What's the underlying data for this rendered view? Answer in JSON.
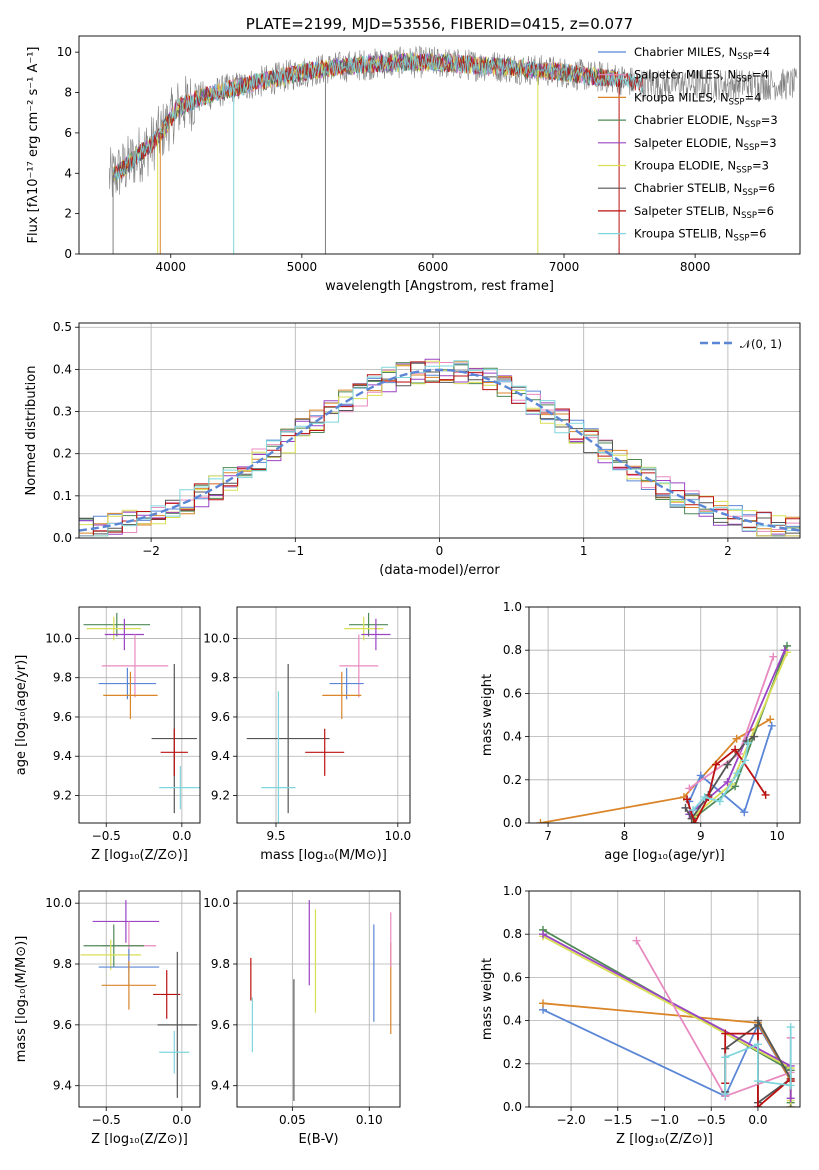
{
  "chart_data": [
    {
      "id": "spectrum",
      "type": "line",
      "title": "PLATE=2199, MJD=53556, FIBERID=0415, z=0.077",
      "xlabel": "wavelength [Angstrom, rest frame]",
      "ylabel": "Flux [fλ10⁻¹⁷ erg cm⁻² s⁻¹ A⁻¹]",
      "xlim": [
        3300,
        8800
      ],
      "ylim": [
        0,
        10.8
      ],
      "xticks": [
        "4000",
        "5000",
        "6000",
        "7000",
        "8000"
      ],
      "yticks": [
        "0",
        "2",
        "4",
        "6",
        "8",
        "10"
      ],
      "legend_position": "right",
      "series": [
        {
          "name": "Chabrier MILES, N",
          "sub": "SSP",
          "suffix": "=4",
          "color": "#5b86d6"
        },
        {
          "name": "Salpeter MILES, N",
          "sub": "SSP",
          "suffix": "=4",
          "color": "#e88ac0"
        },
        {
          "name": "Kroupa MILES, N",
          "sub": "SSP",
          "suffix": "=4",
          "color": "#d98528"
        },
        {
          "name": "Chabrier ELODIE, N",
          "sub": "SSP",
          "suffix": "=3",
          "color": "#4f8a55"
        },
        {
          "name": "Salpeter ELODIE, N",
          "sub": "SSP",
          "suffix": "=3",
          "color": "#9b44c4"
        },
        {
          "name": "Kroupa ELODIE, N",
          "sub": "SSP",
          "suffix": "=3",
          "color": "#d9df55"
        },
        {
          "name": "Chabrier STELIB, N",
          "sub": "SSP",
          "suffix": "=6",
          "color": "#555555"
        },
        {
          "name": "Salpeter STELIB, N",
          "sub": "SSP",
          "suffix": "=6",
          "color": "#bb1111"
        },
        {
          "name": "Kroupa STELIB, N",
          "sub": "SSP",
          "suffix": "=6",
          "color": "#7fd6dc"
        }
      ],
      "continuum_x": [
        3550,
        3650,
        3750,
        3850,
        3950,
        4050,
        4200,
        4400,
        4600,
        4800,
        5000,
        5200,
        5500,
        5800,
        6000,
        6200,
        6500,
        6800,
        7000,
        7200,
        7400,
        7600
      ],
      "continuum_y": [
        3.8,
        4.3,
        4.9,
        5.4,
        6.2,
        7.2,
        7.7,
        8.1,
        8.4,
        8.7,
        9.0,
        9.2,
        9.4,
        9.5,
        9.5,
        9.4,
        9.3,
        9.1,
        9.0,
        8.8,
        8.7,
        8.4
      ]
    },
    {
      "id": "residuals",
      "type": "histogram",
      "xlabel": "(data-model)/error",
      "ylabel": "Normed distribution",
      "xlim": [
        -2.5,
        2.5
      ],
      "ylim": [
        0,
        0.51
      ],
      "xticks": [
        "−2",
        "−1",
        "0",
        "1",
        "2"
      ],
      "yticks": [
        "0.0",
        "0.1",
        "0.2",
        "0.3",
        "0.4",
        "0.5"
      ],
      "legend": "𝒩(0, 1)",
      "legend_position": "top-right"
    },
    {
      "id": "age-vs-z",
      "type": "errorbar",
      "xlabel": "Z [log₁₀(Z/Z⊙)]",
      "ylabel": "age  [log₁₀(age/yr)]",
      "xlim": [
        -0.68,
        0.12
      ],
      "ylim": [
        9.06,
        10.16
      ],
      "xticks": [
        "−0.5",
        "0.0"
      ],
      "yticks": [
        "9.2",
        "9.4",
        "9.6",
        "9.8",
        "10.0"
      ],
      "points": [
        {
          "color": "#4f8a55",
          "x": -0.43,
          "y": 10.07,
          "xe": 0.22,
          "ye": 0.06
        },
        {
          "color": "#d9df55",
          "x": -0.45,
          "y": 10.05,
          "xe": 0.18,
          "ye": 0.06
        },
        {
          "color": "#9b44c4",
          "x": -0.38,
          "y": 10.02,
          "xe": 0.13,
          "ye": 0.08
        },
        {
          "color": "#e88ac0",
          "x": -0.31,
          "y": 9.86,
          "xe": 0.22,
          "ye": 0.16
        },
        {
          "color": "#5b86d6",
          "x": -0.36,
          "y": 9.77,
          "xe": 0.19,
          "ye": 0.08
        },
        {
          "color": "#d98528",
          "x": -0.34,
          "y": 9.71,
          "xe": 0.18,
          "ye": 0.12
        },
        {
          "color": "#555555",
          "x": -0.05,
          "y": 9.49,
          "xe": 0.15,
          "ye": 0.38
        },
        {
          "color": "#bb1111",
          "x": -0.05,
          "y": 9.42,
          "xe": 0.09,
          "ye": 0.12
        },
        {
          "color": "#7fd6dc",
          "x": -0.01,
          "y": 9.24,
          "xe": 0.14,
          "ye": 0.11
        }
      ]
    },
    {
      "id": "age-vs-mass",
      "type": "errorbar",
      "xlabel": "mass [log₁₀(M/M⊙)]",
      "xlim": [
        9.34,
        10.05
      ],
      "ylim": [
        9.06,
        10.16
      ],
      "xticks": [
        "9.5",
        "10.0"
      ],
      "yticks": [
        "9.2",
        "9.4",
        "9.6",
        "9.8",
        "10.0"
      ],
      "points": [
        {
          "color": "#4f8a55",
          "x": 9.88,
          "y": 10.07,
          "xe": 0.08,
          "ye": 0.06
        },
        {
          "color": "#d9df55",
          "x": 9.86,
          "y": 10.05,
          "xe": 0.08,
          "ye": 0.06
        },
        {
          "color": "#9b44c4",
          "x": 9.91,
          "y": 10.02,
          "xe": 0.06,
          "ye": 0.08
        },
        {
          "color": "#e88ac0",
          "x": 9.84,
          "y": 9.86,
          "xe": 0.08,
          "ye": 0.16
        },
        {
          "color": "#5b86d6",
          "x": 9.79,
          "y": 9.77,
          "xe": 0.07,
          "ye": 0.08
        },
        {
          "color": "#d98528",
          "x": 9.77,
          "y": 9.71,
          "xe": 0.08,
          "ye": 0.12
        },
        {
          "color": "#555555",
          "x": 9.55,
          "y": 9.49,
          "xe": 0.17,
          "ye": 0.38
        },
        {
          "color": "#bb1111",
          "x": 9.7,
          "y": 9.42,
          "xe": 0.08,
          "ye": 0.12
        },
        {
          "color": "#7fd6dc",
          "x": 9.51,
          "y": 9.24,
          "xe": 0.07,
          "ye": 0.49
        }
      ]
    },
    {
      "id": "mass-weight-vs-age",
      "type": "line",
      "xlabel": "age  [log₁₀(age/yr)]",
      "ylabel": "mass weight",
      "xlim": [
        6.75,
        10.3
      ],
      "ylim": [
        0,
        1.0
      ],
      "xticks": [
        "7",
        "8",
        "9",
        "10"
      ],
      "yticks": [
        "0.0",
        "0.2",
        "0.4",
        "0.6",
        "0.8",
        "1.0"
      ],
      "series": [
        {
          "color": "#d98528",
          "x": [
            6.9,
            8.78,
            9.47,
            9.91
          ],
          "y": [
            0.0,
            0.12,
            0.39,
            0.48
          ]
        },
        {
          "color": "#5b86d6",
          "x": [
            8.85,
            9.0,
            9.57,
            9.93
          ],
          "y": [
            0.1,
            0.22,
            0.05,
            0.45
          ]
        },
        {
          "color": "#4f8a55",
          "x": [
            8.9,
            9.45,
            10.13
          ],
          "y": [
            0.02,
            0.17,
            0.82
          ]
        },
        {
          "color": "#d9df55",
          "x": [
            8.9,
            9.4,
            10.13
          ],
          "y": [
            0.03,
            0.18,
            0.79
          ]
        },
        {
          "color": "#9b44c4",
          "x": [
            8.85,
            9.35,
            10.1
          ],
          "y": [
            0.04,
            0.19,
            0.8
          ]
        },
        {
          "color": "#e88ac0",
          "x": [
            8.85,
            9.5,
            9.95
          ],
          "y": [
            0.16,
            0.32,
            0.77
          ]
        },
        {
          "color": "#555555",
          "x": [
            8.8,
            8.88,
            9.1,
            9.35,
            9.6,
            9.7
          ],
          "y": [
            0.07,
            0.02,
            0.13,
            0.27,
            0.38,
            0.4
          ]
        },
        {
          "color": "#bb1111",
          "x": [
            8.82,
            8.92,
            9.1,
            9.2,
            9.45,
            9.85
          ],
          "y": [
            0.11,
            0.0,
            0.12,
            0.27,
            0.34,
            0.13
          ]
        },
        {
          "color": "#7fd6dc",
          "x": [
            8.9,
            9.05,
            9.25,
            9.48,
            9.58,
            9.62
          ],
          "y": [
            0.06,
            0.12,
            0.1,
            0.23,
            0.29,
            0.37
          ]
        }
      ]
    },
    {
      "id": "mass-vs-z",
      "type": "errorbar",
      "xlabel": "Z [log₁₀(Z/Z⊙)]",
      "ylabel": "mass [log₁₀(M/M⊙)]",
      "xlim": [
        -0.68,
        0.12
      ],
      "ylim": [
        9.33,
        10.04
      ],
      "xticks": [
        "−0.5",
        "0.0"
      ],
      "yticks": [
        "9.4",
        "9.6",
        "9.8",
        "10.0"
      ],
      "points": [
        {
          "color": "#9b44c4",
          "x": -0.37,
          "y": 9.94,
          "xe": 0.22,
          "ye": 0.07
        },
        {
          "color": "#e88ac0",
          "x": -0.35,
          "y": 9.86,
          "xe": 0.18,
          "ye": 0.08
        },
        {
          "color": "#4f8a55",
          "x": -0.45,
          "y": 9.86,
          "xe": 0.2,
          "ye": 0.07
        },
        {
          "color": "#d9df55",
          "x": -0.47,
          "y": 9.83,
          "xe": 0.2,
          "ye": 0.05
        },
        {
          "color": "#5b86d6",
          "x": -0.35,
          "y": 9.79,
          "xe": 0.2,
          "ye": 0.06
        },
        {
          "color": "#d98528",
          "x": -0.35,
          "y": 9.73,
          "xe": 0.18,
          "ye": 0.08
        },
        {
          "color": "#bb1111",
          "x": -0.1,
          "y": 9.7,
          "xe": 0.09,
          "ye": 0.08
        },
        {
          "color": "#555555",
          "x": -0.03,
          "y": 9.6,
          "xe": 0.13,
          "ye": 0.24
        },
        {
          "color": "#7fd6dc",
          "x": -0.05,
          "y": 9.51,
          "xe": 0.1,
          "ye": 0.07
        }
      ]
    },
    {
      "id": "mass-vs-ebv",
      "type": "errorbar",
      "xlabel": "E(B-V)",
      "xlim": [
        0.014,
        0.12
      ],
      "ylim": [
        9.33,
        10.04
      ],
      "xticks": [
        "0.05",
        "0.10"
      ],
      "yticks": [
        "9.4",
        "9.6",
        "9.8",
        "10.0"
      ],
      "points": [
        {
          "color": "#bb1111",
          "x": 0.023,
          "y": 9.75,
          "xe": 0,
          "ye": 0.07
        },
        {
          "color": "#7fd6dc",
          "x": 0.024,
          "y": 9.6,
          "xe": 0,
          "ye": 0.09
        },
        {
          "color": "#555555",
          "x": 0.051,
          "y": 9.55,
          "xe": 0,
          "ye": 0.2
        },
        {
          "color": "#9b44c4",
          "x": 0.061,
          "y": 9.87,
          "xe": 0,
          "ye": 0.14
        },
        {
          "color": "#d9df55",
          "x": 0.065,
          "y": 9.81,
          "xe": 0,
          "ye": 0.17
        },
        {
          "color": "#5b86d6",
          "x": 0.103,
          "y": 9.77,
          "xe": 0,
          "ye": 0.16
        },
        {
          "color": "#d98528",
          "x": 0.114,
          "y": 9.72,
          "xe": 0,
          "ye": 0.15
        },
        {
          "color": "#e88ac0",
          "x": 0.114,
          "y": 9.88,
          "xe": 0,
          "ye": 0.09
        }
      ]
    },
    {
      "id": "mass-weight-vs-z",
      "type": "line",
      "xlabel": "Z [log₁₀(Z/Z⊙)]",
      "ylabel": "mass weight",
      "xlim": [
        -2.45,
        0.45
      ],
      "ylim": [
        0,
        1.0
      ],
      "xticks": [
        "−2.0",
        "−1.5",
        "−1.0",
        "−0.5",
        "0.0"
      ],
      "yticks": [
        "0.0",
        "0.2",
        "0.4",
        "0.6",
        "0.8",
        "1.0"
      ],
      "series": [
        {
          "color": "#5b86d6",
          "x": [
            -2.3,
            -0.35,
            0.0,
            0.35
          ],
          "y": [
            0.45,
            0.05,
            0.38,
            0.12
          ]
        },
        {
          "color": "#d98528",
          "x": [
            -2.3,
            0.0,
            0.35,
            0.35
          ],
          "y": [
            0.48,
            0.39,
            0.12,
            0.0
          ]
        },
        {
          "color": "#4f8a55",
          "x": [
            -2.3,
            0.35,
            0.35
          ],
          "y": [
            0.82,
            0.17,
            0.02
          ]
        },
        {
          "color": "#d9df55",
          "x": [
            -2.3,
            0.35,
            0.35
          ],
          "y": [
            0.79,
            0.18,
            0.03
          ]
        },
        {
          "color": "#9b44c4",
          "x": [
            -2.3,
            0.35,
            0.35
          ],
          "y": [
            0.8,
            0.19,
            0.04
          ]
        },
        {
          "color": "#e88ac0",
          "x": [
            -1.3,
            -0.35,
            0.35,
            0.35
          ],
          "y": [
            0.77,
            0.05,
            0.16,
            0.32
          ]
        },
        {
          "color": "#555555",
          "x": [
            -0.35,
            -0.35,
            0.0,
            0.0,
            0.35,
            0.0
          ],
          "y": [
            0.07,
            0.27,
            0.38,
            0.02,
            0.13,
            0.4
          ]
        },
        {
          "color": "#bb1111",
          "x": [
            -0.35,
            -0.35,
            0.0,
            0.0,
            0.35,
            0.35
          ],
          "y": [
            0.11,
            0.34,
            0.34,
            0.0,
            0.13,
            0.12
          ]
        },
        {
          "color": "#7fd6dc",
          "x": [
            -0.35,
            -0.35,
            0.0,
            0.0,
            0.35,
            0.35
          ],
          "y": [
            0.06,
            0.23,
            0.29,
            0.12,
            0.1,
            0.37
          ]
        }
      ]
    }
  ]
}
